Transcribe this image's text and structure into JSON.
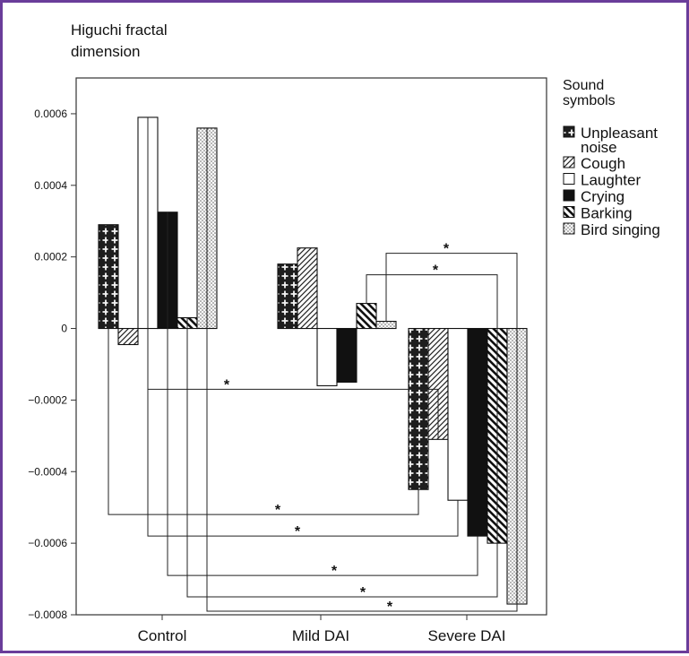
{
  "colors": {
    "frame_border": "#6a3d9a",
    "ink": "#111111",
    "axes": "#333333"
  },
  "chart_data": {
    "type": "bar",
    "ylabel_lines": [
      "Higuchi fractal",
      "dimension"
    ],
    "ylim": [
      -0.0008,
      0.0007
    ],
    "yticks": [
      {
        "value": 0.0006,
        "label": "0.0006"
      },
      {
        "value": 0.0004,
        "label": "0.0004"
      },
      {
        "value": 0.0002,
        "label": "0.0002"
      },
      {
        "value": 0,
        "label": "0"
      },
      {
        "value": -0.0002,
        "label": "−0.0002"
      },
      {
        "value": -0.0004,
        "label": "−0.0004"
      },
      {
        "value": -0.0006,
        "label": "−0.0006"
      },
      {
        "value": -0.0008,
        "label": "−0.0008"
      }
    ],
    "categories": [
      "Control",
      "Mild DAI",
      "Severe DAI"
    ],
    "legend": {
      "title_lines": [
        "Sound",
        "symbols"
      ],
      "position": "right",
      "items": [
        {
          "lines": [
            "Unpleasant",
            "noise"
          ],
          "pattern": "cross"
        },
        {
          "lines": [
            "Cough"
          ],
          "pattern": "diag"
        },
        {
          "lines": [
            "Laughter"
          ],
          "pattern": "white"
        },
        {
          "lines": [
            "Crying"
          ],
          "pattern": "black"
        },
        {
          "lines": [
            "Barking"
          ],
          "pattern": "backdiag"
        },
        {
          "lines": [
            "Bird singing"
          ],
          "pattern": "dots"
        }
      ]
    },
    "series": [
      {
        "name": "Unpleasant noise",
        "pattern": "cross",
        "values": [
          0.00029,
          0.00018,
          -0.00045
        ]
      },
      {
        "name": "Cough",
        "pattern": "diag",
        "values": [
          -4.5e-05,
          0.000225,
          -0.00031
        ]
      },
      {
        "name": "Laughter",
        "pattern": "white",
        "values": [
          0.00059,
          -0.00016,
          -0.00048
        ]
      },
      {
        "name": "Crying",
        "pattern": "black",
        "values": [
          0.000325,
          -0.00015,
          -0.00058
        ]
      },
      {
        "name": "Barking",
        "pattern": "backdiag",
        "values": [
          3e-05,
          7e-05,
          -0.0006
        ]
      },
      {
        "name": "Bird singing",
        "pattern": "dots",
        "values": [
          0.00056,
          2e-05,
          -0.00077
        ]
      }
    ],
    "significance": [
      {
        "from": [
          2,
          0
        ],
        "to": [
          1,
          2
        ],
        "label": "*"
      },
      {
        "from": [
          0,
          0
        ],
        "to": [
          0,
          2
        ],
        "label": "*"
      },
      {
        "from": [
          2,
          0
        ],
        "to": [
          2,
          2
        ],
        "label": "*"
      },
      {
        "from": [
          3,
          0
        ],
        "to": [
          3,
          2
        ],
        "label": "*"
      },
      {
        "from": [
          4,
          0
        ],
        "to": [
          4,
          2
        ],
        "label": "*"
      },
      {
        "from": [
          5,
          0
        ],
        "to": [
          5,
          2
        ],
        "label": "*"
      },
      {
        "from": [
          4,
          1
        ],
        "to": [
          4,
          2
        ],
        "label": "*"
      },
      {
        "from": [
          5,
          1
        ],
        "to": [
          5,
          2
        ],
        "label": "*"
      }
    ]
  }
}
